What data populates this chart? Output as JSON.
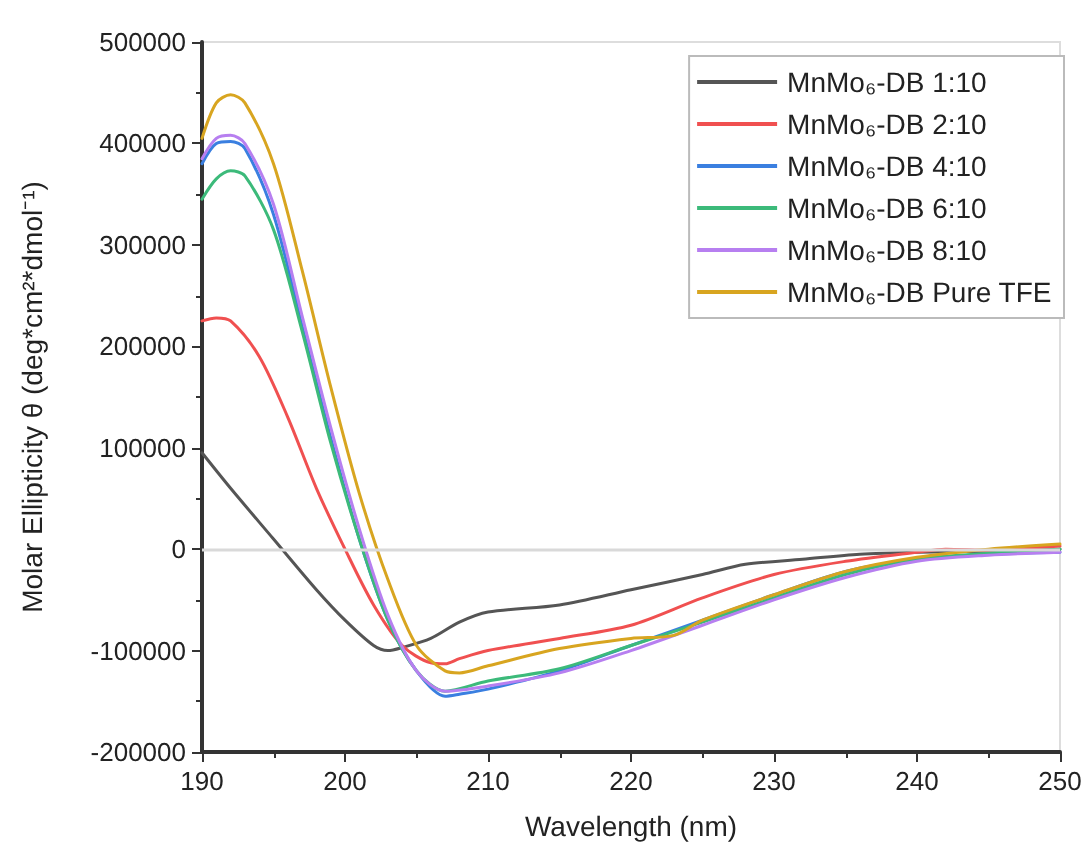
{
  "chart_data": {
    "type": "line",
    "xlabel": "Wavelength (nm)",
    "ylabel": "Molar Ellipticity θ (deg*cm²*dmol⁻¹)",
    "xlim": [
      190,
      250
    ],
    "xticks": [
      190,
      200,
      210,
      220,
      230,
      240,
      250
    ],
    "ylim": [
      -200000,
      500000
    ],
    "yticks": [
      -200000,
      -100000,
      0,
      100000,
      200000,
      300000,
      400000,
      500000
    ],
    "grid": false,
    "legend": "top right",
    "marker": "none",
    "line_style": "solid",
    "ref_lines": [
      {
        "axis": "y",
        "value": 0,
        "color": "#d9d9d9"
      }
    ],
    "series": [
      {
        "name": "MnMo₆-DB 1:10",
        "color": "#555555",
        "x": [
          190,
          192,
          195,
          198,
          200,
          202,
          203,
          204,
          206,
          208,
          210,
          215,
          220,
          225,
          228,
          232,
          236,
          240,
          245,
          250
        ],
        "values": [
          95000,
          60000,
          10000,
          -40000,
          -70000,
          -95000,
          -100000,
          -97000,
          -88000,
          -72000,
          -62000,
          -55000,
          -40000,
          -25000,
          -15000,
          -10000,
          -5000,
          -3000,
          -2000,
          0
        ]
      },
      {
        "name": "MnMo₆-DB 2:10",
        "color": "#f05050",
        "x": [
          190,
          191,
          192,
          194,
          196,
          198,
          200,
          202,
          204,
          206,
          207,
          208,
          210,
          215,
          220,
          225,
          230,
          235,
          240,
          242,
          245,
          250
        ],
        "values": [
          225000,
          228000,
          225000,
          190000,
          130000,
          60000,
          0,
          -55000,
          -95000,
          -112000,
          -113000,
          -108000,
          -100000,
          -88000,
          -75000,
          -48000,
          -25000,
          -12000,
          -3000,
          0,
          -1000,
          3000
        ]
      },
      {
        "name": "MnMo₆-DB 4:10",
        "color": "#3a7fe0",
        "x": [
          190,
          191,
          192,
          193,
          195,
          197,
          199,
          201,
          203,
          205,
          207,
          208,
          210,
          215,
          220,
          225,
          230,
          235,
          240,
          245,
          250
        ],
        "values": [
          380000,
          400000,
          402000,
          395000,
          330000,
          220000,
          110000,
          10000,
          -70000,
          -120000,
          -145000,
          -143000,
          -138000,
          -120000,
          -95000,
          -70000,
          -45000,
          -22000,
          -10000,
          -5000,
          -3000
        ]
      },
      {
        "name": "MnMo₆-DB 6:10",
        "color": "#3cba7a",
        "x": [
          190,
          191,
          192,
          193,
          195,
          197,
          199,
          201,
          203,
          205,
          207,
          210,
          215,
          220,
          225,
          230,
          235,
          240,
          245,
          250
        ],
        "values": [
          345000,
          365000,
          373000,
          368000,
          315000,
          215000,
          105000,
          10000,
          -70000,
          -120000,
          -140000,
          -130000,
          -118000,
          -95000,
          -72000,
          -48000,
          -25000,
          -10000,
          -4000,
          0
        ]
      },
      {
        "name": "MnMo₆-DB 8:10",
        "color": "#b77ff0",
        "x": [
          190,
          191,
          192,
          193,
          195,
          197,
          199,
          201,
          203,
          205,
          207,
          210,
          215,
          220,
          225,
          230,
          235,
          240,
          245,
          250
        ],
        "values": [
          385000,
          405000,
          408000,
          400000,
          340000,
          230000,
          120000,
          20000,
          -65000,
          -120000,
          -140000,
          -135000,
          -122000,
          -100000,
          -75000,
          -50000,
          -28000,
          -12000,
          -6000,
          -3000
        ]
      },
      {
        "name": "MnMo₆-DB Pure TFE",
        "color": "#d8a520",
        "x": [
          190,
          191,
          192,
          193,
          195,
          197,
          199,
          201,
          203,
          205,
          207,
          208,
          210,
          215,
          220,
          223,
          225,
          230,
          235,
          240,
          245,
          250
        ],
        "values": [
          405000,
          440000,
          448000,
          440000,
          380000,
          275000,
          160000,
          55000,
          -30000,
          -95000,
          -120000,
          -122000,
          -115000,
          -98000,
          -88000,
          -85000,
          -70000,
          -45000,
          -22000,
          -8000,
          0,
          5000
        ]
      }
    ]
  }
}
